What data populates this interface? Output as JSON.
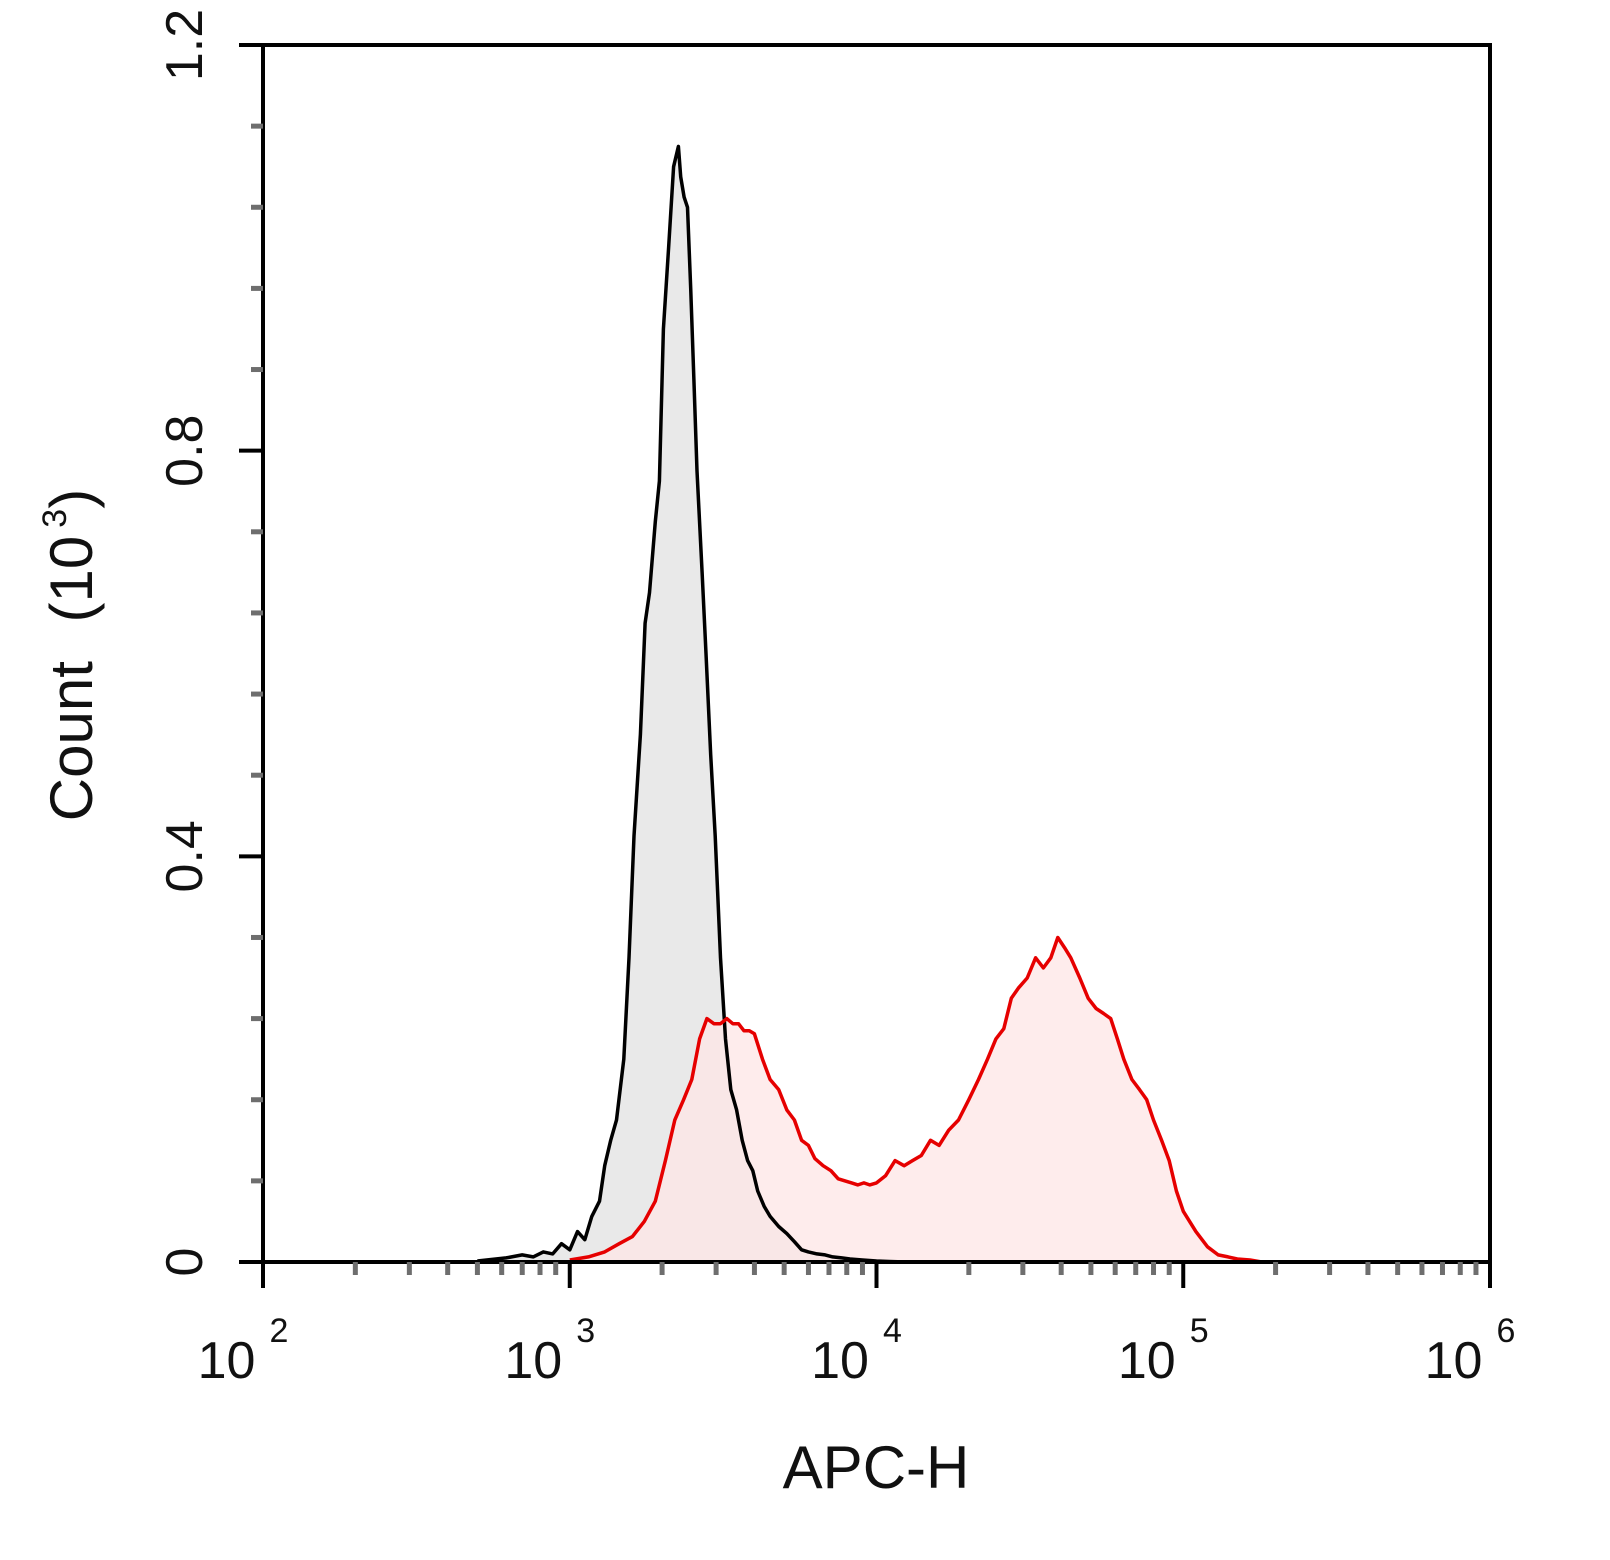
{
  "chart_data": {
    "type": "area",
    "xlabel": "APC-H",
    "ylabel_main": "Count",
    "ylabel_unit_base": "10",
    "ylabel_unit_exp": "3",
    "x_scale": "log",
    "xlim": [
      100,
      1000000
    ],
    "ylim": [
      0,
      1.2
    ],
    "x_ticks": [
      {
        "value": 100,
        "base": "10",
        "exp": "2"
      },
      {
        "value": 1000,
        "base": "10",
        "exp": "3"
      },
      {
        "value": 10000,
        "base": "10",
        "exp": "4"
      },
      {
        "value": 100000,
        "base": "10",
        "exp": "5"
      },
      {
        "value": 1000000,
        "base": "10",
        "exp": "6"
      }
    ],
    "y_ticks": [
      {
        "value": 0,
        "label": "0"
      },
      {
        "value": 0.4,
        "label": "0.4"
      },
      {
        "value": 0.8,
        "label": "0.8"
      },
      {
        "value": 1.2,
        "label": "1.2"
      }
    ],
    "grid": false,
    "legend": "none",
    "series": [
      {
        "color": "#000000",
        "fill": "#e9e9e9",
        "x": [
          500,
          620,
          700,
          760,
          820,
          880,
          940,
          1000,
          1060,
          1120,
          1180,
          1250,
          1300,
          1360,
          1420,
          1500,
          1560,
          1620,
          1700,
          1760,
          1820,
          1900,
          1960,
          2020,
          2100,
          2180,
          2260,
          2300,
          2360,
          2420,
          2480,
          2540,
          2600,
          2700,
          2780,
          2880,
          2980,
          3100,
          3220,
          3350,
          3500,
          3650,
          3800,
          3950,
          4100,
          4300,
          4500,
          4800,
          5100,
          5400,
          5700,
          6000,
          6400,
          6800,
          7200,
          7700,
          8200,
          9000,
          10000,
          11000,
          12500
        ],
        "y": [
          0.001,
          0.004,
          0.007,
          0.005,
          0.01,
          0.008,
          0.018,
          0.012,
          0.03,
          0.022,
          0.045,
          0.06,
          0.095,
          0.12,
          0.14,
          0.2,
          0.3,
          0.42,
          0.52,
          0.63,
          0.66,
          0.73,
          0.77,
          0.92,
          1.0,
          1.08,
          1.1,
          1.07,
          1.05,
          1.04,
          0.96,
          0.87,
          0.78,
          0.68,
          0.6,
          0.5,
          0.42,
          0.3,
          0.22,
          0.17,
          0.15,
          0.12,
          0.1,
          0.09,
          0.07,
          0.055,
          0.045,
          0.035,
          0.028,
          0.02,
          0.012,
          0.01,
          0.008,
          0.007,
          0.005,
          0.004,
          0.003,
          0.002,
          0.001,
          0.0005,
          0.0
        ]
      },
      {
        "color": "#e60000",
        "fill": "#fde6e6",
        "x": [
          1000,
          1150,
          1300,
          1450,
          1600,
          1750,
          1900,
          2050,
          2200,
          2350,
          2500,
          2650,
          2800,
          2950,
          3100,
          3250,
          3400,
          3550,
          3700,
          3850,
          4000,
          4250,
          4500,
          4800,
          5100,
          5400,
          5700,
          6000,
          6300,
          6700,
          7100,
          7500,
          7900,
          8300,
          8700,
          9100,
          9500,
          10000,
          10700,
          11500,
          12300,
          13100,
          14000,
          15000,
          16000,
          17200,
          18500,
          20000,
          21500,
          23000,
          24500,
          26000,
          27500,
          29000,
          31000,
          33000,
          35000,
          37000,
          39000,
          41000,
          43000,
          46000,
          49000,
          52000,
          55000,
          58000,
          61000,
          64000,
          68000,
          72000,
          76000,
          80000,
          85000,
          90000,
          95000,
          100000,
          110000,
          120000,
          130000,
          140000,
          150000,
          165000,
          180000,
          200000
        ],
        "y": [
          0.002,
          0.005,
          0.01,
          0.018,
          0.025,
          0.04,
          0.06,
          0.1,
          0.14,
          0.16,
          0.18,
          0.22,
          0.24,
          0.235,
          0.235,
          0.24,
          0.235,
          0.235,
          0.228,
          0.228,
          0.225,
          0.2,
          0.18,
          0.17,
          0.15,
          0.14,
          0.12,
          0.115,
          0.102,
          0.095,
          0.09,
          0.082,
          0.08,
          0.078,
          0.076,
          0.078,
          0.076,
          0.078,
          0.085,
          0.1,
          0.095,
          0.1,
          0.105,
          0.12,
          0.115,
          0.13,
          0.14,
          0.16,
          0.18,
          0.2,
          0.22,
          0.23,
          0.26,
          0.27,
          0.28,
          0.3,
          0.29,
          0.3,
          0.32,
          0.31,
          0.3,
          0.28,
          0.26,
          0.25,
          0.245,
          0.24,
          0.22,
          0.2,
          0.18,
          0.17,
          0.16,
          0.14,
          0.12,
          0.1,
          0.07,
          0.05,
          0.03,
          0.015,
          0.007,
          0.005,
          0.003,
          0.002,
          0.0,
          0.0
        ]
      }
    ]
  }
}
